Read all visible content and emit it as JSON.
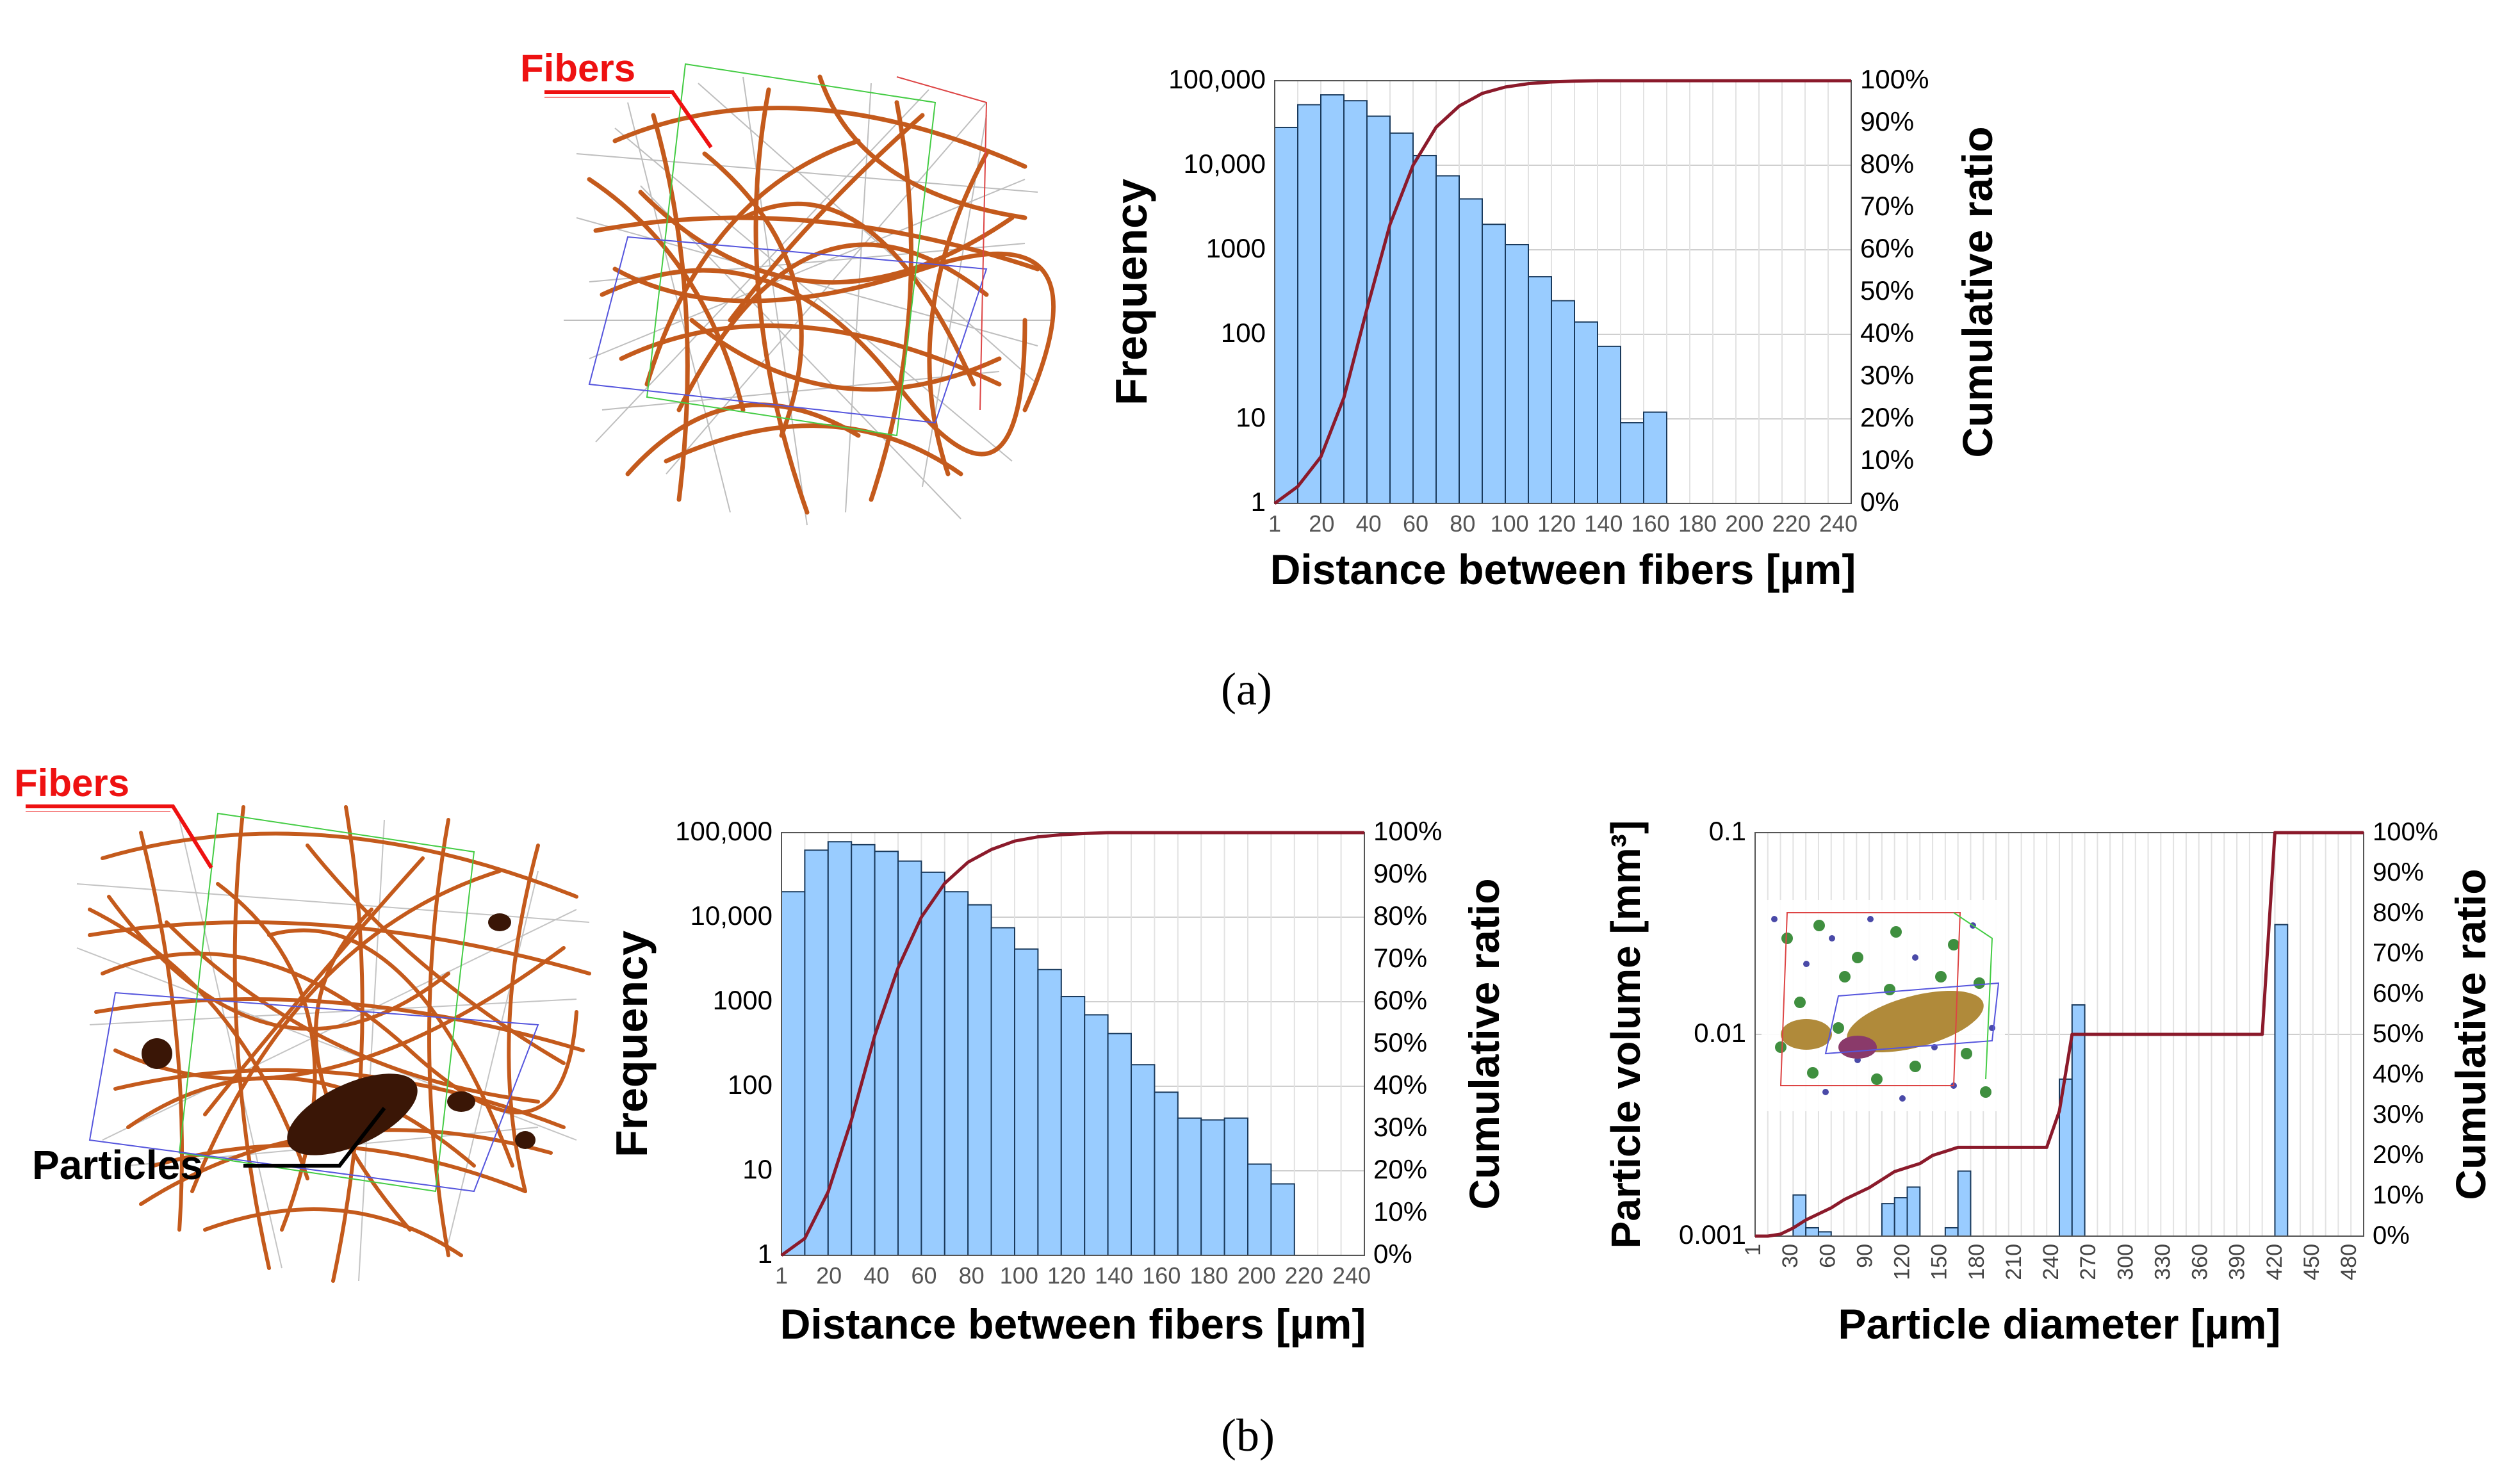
{
  "colors": {
    "bar_fill": "#99ccff",
    "bar_stroke": "#1a3a5c",
    "cumulative_line": "#8b1a2b",
    "grid": "#cfcfcf",
    "label_red": "#ee1111",
    "fiber_orange": "#c45a1c",
    "particle_dark": "#3a1606"
  },
  "labels": {
    "panel_a": "(a)",
    "panel_b": "(b)",
    "fibers_a": "Fibers",
    "fibers_b": "Fibers",
    "particles": "Particles"
  },
  "chart_data": [
    {
      "id": "a",
      "type": "bar",
      "xlabel": "Distance between fibers [µm]",
      "ylabel": "Frequency",
      "y2label": "Cumulative ratio",
      "yscale": "log",
      "yticks": [
        "1",
        "10",
        "100",
        "1000",
        "10,000",
        "100,000"
      ],
      "ylim": [
        1,
        100000
      ],
      "y2ticks": [
        "0%",
        "10%",
        "20%",
        "30%",
        "40%",
        "50%",
        "60%",
        "70%",
        "80%",
        "90%",
        "100%"
      ],
      "xticks": [
        "1",
        "20",
        "40",
        "60",
        "80",
        "100",
        "120",
        "140",
        "160",
        "180",
        "200",
        "220",
        "240"
      ],
      "bin_count": 25,
      "values": [
        28000,
        52000,
        68000,
        58000,
        38000,
        24000,
        13000,
        7500,
        4000,
        2000,
        1150,
        480,
        250,
        140,
        72,
        9,
        12,
        0,
        0,
        0,
        0,
        0,
        0,
        0,
        0
      ],
      "cumulative": [
        [
          0,
          0
        ],
        [
          1,
          4
        ],
        [
          2,
          11
        ],
        [
          3,
          25
        ],
        [
          4,
          46
        ],
        [
          5,
          66
        ],
        [
          6,
          80
        ],
        [
          7,
          89
        ],
        [
          8,
          94
        ],
        [
          9,
          97
        ],
        [
          10,
          98.5
        ],
        [
          11,
          99.3
        ],
        [
          12,
          99.7
        ],
        [
          13,
          99.9
        ],
        [
          14,
          100
        ],
        [
          25,
          100
        ]
      ]
    },
    {
      "id": "b1",
      "type": "bar",
      "xlabel": "Distance between fibers [µm]",
      "ylabel": "Frequency",
      "y2label": "Cumulative ratio",
      "yscale": "log",
      "yticks": [
        "1",
        "10",
        "100",
        "1000",
        "10,000",
        "100,000"
      ],
      "ylim": [
        1,
        100000
      ],
      "y2ticks": [
        "0%",
        "10%",
        "20%",
        "30%",
        "40%",
        "50%",
        "60%",
        "70%",
        "80%",
        "90%",
        "100%"
      ],
      "xticks": [
        "1",
        "20",
        "40",
        "60",
        "80",
        "100",
        "120",
        "140",
        "160",
        "180",
        "200",
        "220",
        "240"
      ],
      "bin_count": 25,
      "values": [
        20000,
        62000,
        78000,
        72000,
        60000,
        46000,
        34000,
        20000,
        14000,
        7500,
        4200,
        2400,
        1150,
        700,
        420,
        180,
        85,
        42,
        40,
        42,
        12,
        7,
        0,
        0,
        0
      ],
      "cumulative": [
        [
          0,
          0
        ],
        [
          1,
          4
        ],
        [
          2,
          15
        ],
        [
          3,
          32
        ],
        [
          4,
          52
        ],
        [
          5,
          68
        ],
        [
          6,
          80
        ],
        [
          7,
          88
        ],
        [
          8,
          93
        ],
        [
          9,
          96
        ],
        [
          10,
          98
        ],
        [
          11,
          99
        ],
        [
          12,
          99.5
        ],
        [
          13,
          99.8
        ],
        [
          14,
          100
        ],
        [
          25,
          100
        ]
      ]
    },
    {
      "id": "b2",
      "type": "bar",
      "xlabel": "Particle diameter [µm]",
      "ylabel": "Particle volume [mm³]",
      "y2label": "Cumulative ratio",
      "yscale": "log",
      "yticks": [
        "0.001",
        "0.01",
        "0.1"
      ],
      "ylim": [
        0.001,
        0.1
      ],
      "y2ticks": [
        "0%",
        "10%",
        "20%",
        "30%",
        "40%",
        "50%",
        "60%",
        "70%",
        "80%",
        "90%",
        "100%"
      ],
      "xticks": [
        "1",
        "30",
        "60",
        "90",
        "120",
        "150",
        "180",
        "210",
        "240",
        "270",
        "300",
        "330",
        "360",
        "390",
        "420",
        "450",
        "480"
      ],
      "bin_count": 48,
      "values": [
        0,
        0,
        0,
        0.0016,
        0.0011,
        0.00105,
        0,
        0,
        0,
        0,
        0.00145,
        0.00155,
        0.00175,
        0,
        0,
        0.0011,
        0.0021,
        0,
        0,
        0,
        0,
        0,
        0,
        0,
        0.006,
        0.014,
        0,
        0,
        0,
        0,
        0,
        0,
        0,
        0,
        0,
        0,
        0,
        0,
        0,
        0,
        0,
        0.035,
        0,
        0,
        0,
        0,
        0,
        0
      ],
      "cumulative": [
        [
          0,
          0
        ],
        [
          1,
          0
        ],
        [
          2,
          0.5
        ],
        [
          3,
          2
        ],
        [
          4,
          4
        ],
        [
          6,
          7
        ],
        [
          7,
          9
        ],
        [
          9,
          12
        ],
        [
          10,
          14
        ],
        [
          11,
          16
        ],
        [
          12,
          17
        ],
        [
          13,
          18
        ],
        [
          14,
          20
        ],
        [
          15,
          21
        ],
        [
          16,
          22
        ],
        [
          23,
          22
        ],
        [
          24,
          31
        ],
        [
          25,
          50
        ],
        [
          40,
          50
        ],
        [
          41,
          100
        ],
        [
          48,
          100
        ]
      ]
    }
  ]
}
